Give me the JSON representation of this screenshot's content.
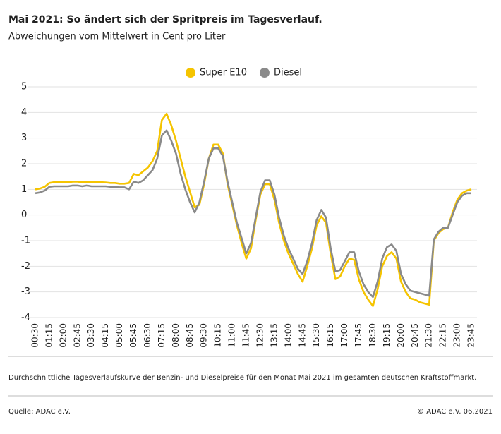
{
  "chart_data": {
    "type": "line",
    "title": "Mai 2021:  So ändert sich der Spritpreis im Tagesverlauf.",
    "subtitle": "Abweichungen vom Mittelwert in Cent pro Liter",
    "footnote": "Durchschnittliche Tagesverlaufskurve der Benzin- und Dieselpreise für den Monat Mai 2021 im gesamten deutschen Kraftstoffmarkt.",
    "source": "Quelle: ADAC e.V.",
    "copyright": "© ADAC e.V. 06.2021",
    "categories": [
      "00:30",
      null,
      null,
      "01:15",
      null,
      null,
      "02:00",
      null,
      null,
      "02:45",
      null,
      null,
      "03:30",
      null,
      null,
      "04:15",
      null,
      null,
      "05:00",
      null,
      null,
      "05:45",
      null,
      null,
      "06:30",
      null,
      null,
      "07:15",
      null,
      null,
      "08:00",
      null,
      null,
      "08:45",
      null,
      null,
      "09:30",
      null,
      null,
      "10:15",
      null,
      null,
      "11:00",
      null,
      null,
      "11:45",
      null,
      null,
      "12:30",
      null,
      null,
      "13:15",
      null,
      null,
      "14:00",
      null,
      null,
      "14:45",
      null,
      null,
      "15:30",
      null,
      null,
      "16:15",
      null,
      null,
      "17:00",
      null,
      null,
      "17:45",
      null,
      null,
      "18:30",
      null,
      null,
      "19:15",
      null,
      null,
      "20:00",
      null,
      null,
      "20:45",
      null,
      null,
      "21:30",
      null,
      null,
      "22:15",
      null,
      null,
      "23:00",
      null,
      null,
      "23:45"
    ],
    "series": [
      {
        "name": "Super E10",
        "color": "#f5c400",
        "values": [
          1.0,
          1.03,
          1.1,
          1.25,
          1.28,
          1.28,
          1.28,
          1.28,
          1.3,
          1.3,
          1.28,
          1.28,
          1.28,
          1.28,
          1.28,
          1.27,
          1.25,
          1.25,
          1.22,
          1.22,
          1.25,
          1.6,
          1.55,
          1.7,
          1.85,
          2.1,
          2.5,
          3.7,
          3.95,
          3.5,
          2.9,
          2.2,
          1.5,
          0.9,
          0.3,
          0.4,
          1.2,
          2.2,
          2.75,
          2.75,
          2.4,
          1.2,
          0.4,
          -0.4,
          -1.1,
          -1.7,
          -1.3,
          -0.2,
          0.8,
          1.2,
          1.2,
          0.6,
          -0.3,
          -1.0,
          -1.5,
          -1.9,
          -2.3,
          -2.6,
          -2.0,
          -1.3,
          -0.4,
          -0.05,
          -0.3,
          -1.5,
          -2.5,
          -2.4,
          -2.0,
          -1.7,
          -1.75,
          -2.5,
          -3.0,
          -3.3,
          -3.55,
          -2.9,
          -2.0,
          -1.6,
          -1.45,
          -1.7,
          -2.6,
          -3.0,
          -3.25,
          -3.3,
          -3.4,
          -3.45,
          -3.5,
          -1.0,
          -0.7,
          -0.55,
          -0.5,
          0.1,
          0.6,
          0.85,
          0.95,
          1.0
        ]
      },
      {
        "name": "Diesel",
        "color": "#8a8a8a",
        "values": [
          0.85,
          0.88,
          0.95,
          1.1,
          1.12,
          1.12,
          1.12,
          1.12,
          1.15,
          1.15,
          1.12,
          1.15,
          1.12,
          1.12,
          1.12,
          1.12,
          1.1,
          1.1,
          1.08,
          1.08,
          1.0,
          1.3,
          1.25,
          1.35,
          1.55,
          1.75,
          2.2,
          3.1,
          3.3,
          2.9,
          2.4,
          1.6,
          1.0,
          0.5,
          0.1,
          0.5,
          1.3,
          2.2,
          2.6,
          2.6,
          2.3,
          1.3,
          0.5,
          -0.3,
          -0.9,
          -1.5,
          -1.1,
          -0.1,
          0.9,
          1.35,
          1.35,
          0.8,
          -0.1,
          -0.8,
          -1.3,
          -1.7,
          -2.1,
          -2.3,
          -1.8,
          -1.1,
          -0.2,
          0.2,
          -0.1,
          -1.3,
          -2.2,
          -2.15,
          -1.8,
          -1.45,
          -1.45,
          -2.2,
          -2.7,
          -3.0,
          -3.2,
          -2.6,
          -1.7,
          -1.25,
          -1.15,
          -1.4,
          -2.3,
          -2.7,
          -2.95,
          -3.0,
          -3.05,
          -3.1,
          -3.15,
          -0.95,
          -0.65,
          -0.5,
          -0.5,
          0.0,
          0.5,
          0.75,
          0.85,
          0.85
        ]
      }
    ],
    "ylim": [
      -4,
      5
    ],
    "yticks": [
      5,
      4,
      3,
      2,
      1,
      0,
      -1,
      -2,
      -3,
      -4
    ],
    "grid": true,
    "legend": "top"
  }
}
